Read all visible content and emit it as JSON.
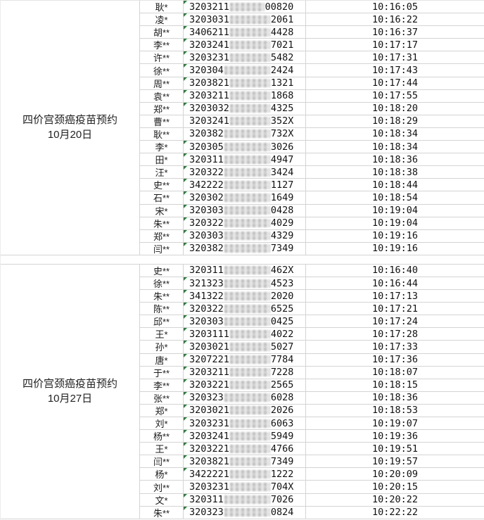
{
  "colors": {
    "grid_line": "#d4d4d4",
    "flag_green": "#2b7d3c",
    "text": "#1c1c1c"
  },
  "table": {
    "id_total_digits": 18,
    "sections": [
      {
        "label_line1": "四价宫颈癌疫苗预约",
        "label_line2": "10月20日",
        "rows": [
          {
            "name": "耿*",
            "id_prefix": "3203211",
            "id_suffix": "00820",
            "time": "10:16:05",
            "flag": true
          },
          {
            "name": "凌*",
            "id_prefix": "3203031",
            "id_suffix": "2061",
            "time": "10:16:22",
            "flag": true
          },
          {
            "name": "胡**",
            "id_prefix": "3406211",
            "id_suffix": "4428",
            "time": "10:16:37",
            "flag": true
          },
          {
            "name": "李**",
            "id_prefix": "3203241",
            "id_suffix": "7021",
            "time": "10:17:17",
            "flag": true
          },
          {
            "name": "许**",
            "id_prefix": "3203231",
            "id_suffix": "5482",
            "time": "10:17:31",
            "flag": true
          },
          {
            "name": "徐**",
            "id_prefix": "320304",
            "id_suffix": "2424",
            "time": "10:17:43",
            "flag": true
          },
          {
            "name": "周**",
            "id_prefix": "3203821",
            "id_suffix": "1321",
            "time": "10:17:44",
            "flag": true
          },
          {
            "name": "袁**",
            "id_prefix": "3203211",
            "id_suffix": "1868",
            "time": "10:17:55",
            "flag": true
          },
          {
            "name": "郑**",
            "id_prefix": "3203032",
            "id_suffix": "4325",
            "time": "10:18:20",
            "flag": true
          },
          {
            "name": "曹**",
            "id_prefix": "3203241",
            "id_suffix": "352X",
            "time": "10:18:29",
            "flag": false
          },
          {
            "name": "耿**",
            "id_prefix": "320382",
            "id_suffix": "732X",
            "time": "10:18:34",
            "flag": false
          },
          {
            "name": "李*",
            "id_prefix": "320305",
            "id_suffix": "3026",
            "time": "10:18:34",
            "flag": true
          },
          {
            "name": "田*",
            "id_prefix": "320311",
            "id_suffix": "4947",
            "time": "10:18:36",
            "flag": true
          },
          {
            "name": "汪*",
            "id_prefix": "320322",
            "id_suffix": "3424",
            "time": "10:18:38",
            "flag": true
          },
          {
            "name": "史**",
            "id_prefix": "342222",
            "id_suffix": "1127",
            "time": "10:18:44",
            "flag": true
          },
          {
            "name": "石**",
            "id_prefix": "320302",
            "id_suffix": "1649",
            "time": "10:18:54",
            "flag": true
          },
          {
            "name": "宋*",
            "id_prefix": "320303",
            "id_suffix": "0428",
            "time": "10:19:04",
            "flag": true
          },
          {
            "name": "朱**",
            "id_prefix": "320322",
            "id_suffix": "4029",
            "time": "10:19:04",
            "flag": true
          },
          {
            "name": "郑**",
            "id_prefix": "320303",
            "id_suffix": "4329",
            "time": "10:19:16",
            "flag": true
          },
          {
            "name": "闫**",
            "id_prefix": "320382",
            "id_suffix": "7349",
            "time": "10:19:16",
            "flag": true
          }
        ]
      },
      {
        "label_line1": "四价宫颈癌疫苗预约",
        "label_line2": "10月27日",
        "rows": [
          {
            "name": "史**",
            "id_prefix": "320311",
            "id_suffix": "462X",
            "time": "10:16:40",
            "flag": false
          },
          {
            "name": "徐**",
            "id_prefix": "321323",
            "id_suffix": "4523",
            "time": "10:16:44",
            "flag": true
          },
          {
            "name": "朱**",
            "id_prefix": "341322",
            "id_suffix": "2020",
            "time": "10:17:13",
            "flag": true
          },
          {
            "name": "陈**",
            "id_prefix": "320322",
            "id_suffix": "6525",
            "time": "10:17:21",
            "flag": true
          },
          {
            "name": "邱**",
            "id_prefix": "320303",
            "id_suffix": "0425",
            "time": "10:17:24",
            "flag": true
          },
          {
            "name": "王*",
            "id_prefix": "3203111",
            "id_suffix": "4022",
            "time": "10:17:28",
            "flag": true
          },
          {
            "name": "孙*",
            "id_prefix": "3203021",
            "id_suffix": "5027",
            "time": "10:17:33",
            "flag": true
          },
          {
            "name": "唐*",
            "id_prefix": "3207221",
            "id_suffix": "7784",
            "time": "10:17:36",
            "flag": true
          },
          {
            "name": "于**",
            "id_prefix": "3203211",
            "id_suffix": "7228",
            "time": "10:18:07",
            "flag": true
          },
          {
            "name": "李**",
            "id_prefix": "3203221",
            "id_suffix": "2565",
            "time": "10:18:15",
            "flag": true
          },
          {
            "name": "张**",
            "id_prefix": "320323",
            "id_suffix": "6028",
            "time": "10:18:36",
            "flag": true
          },
          {
            "name": "郑*",
            "id_prefix": "3203021",
            "id_suffix": "2026",
            "time": "10:18:53",
            "flag": true
          },
          {
            "name": "刘*",
            "id_prefix": "3203231",
            "id_suffix": "6063",
            "time": "10:19:07",
            "flag": true
          },
          {
            "name": "杨**",
            "id_prefix": "3203241",
            "id_suffix": "5949",
            "time": "10:19:36",
            "flag": true
          },
          {
            "name": "王*",
            "id_prefix": "3203221",
            "id_suffix": "4766",
            "time": "10:19:51",
            "flag": true
          },
          {
            "name": "闫**",
            "id_prefix": "3203821",
            "id_suffix": "7349",
            "time": "10:19:57",
            "flag": true
          },
          {
            "name": "杨*",
            "id_prefix": "3422221",
            "id_suffix": "1222",
            "time": "10:20:09",
            "flag": true
          },
          {
            "name": "刘**",
            "id_prefix": "3203231",
            "id_suffix": "704X",
            "time": "10:20:15",
            "flag": false
          },
          {
            "name": "文*",
            "id_prefix": "320311",
            "id_suffix": "7026",
            "time": "10:20:22",
            "flag": true
          },
          {
            "name": "朱**",
            "id_prefix": "320323",
            "id_suffix": "0824",
            "time": "10:22:22",
            "flag": true
          }
        ]
      }
    ]
  }
}
